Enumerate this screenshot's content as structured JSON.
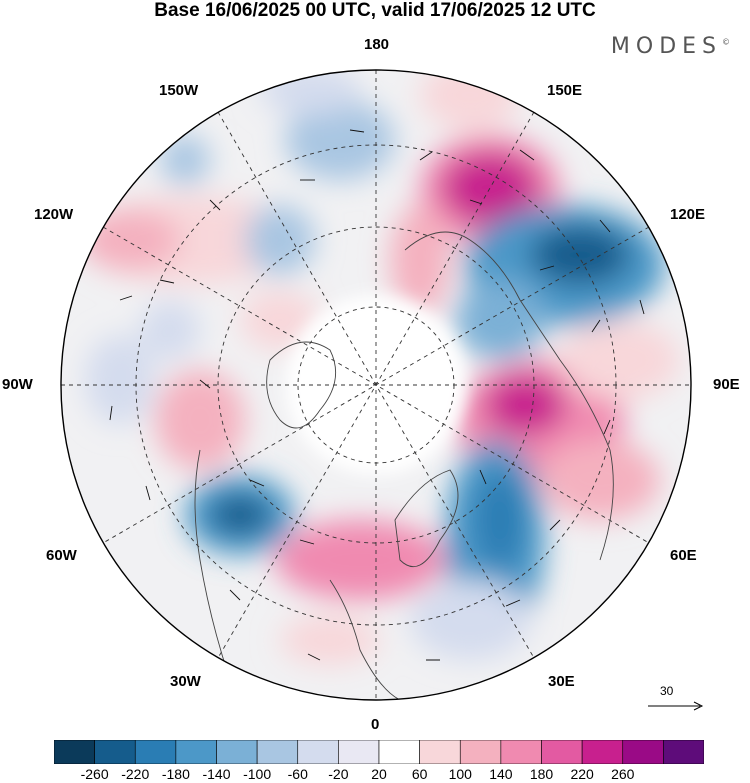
{
  "header": {
    "title": "Base 16/06/2025 00 UTC, valid 17/06/2025 12 UTC",
    "brand": "MODES",
    "brand_mark": "©"
  },
  "map": {
    "projection": "north-polar-stereographic",
    "longitude_labels": [
      {
        "id": "lon-180",
        "text": "180"
      },
      {
        "id": "lon-150e",
        "text": "150E"
      },
      {
        "id": "lon-120e",
        "text": "120E"
      },
      {
        "id": "lon-90e",
        "text": "90E"
      },
      {
        "id": "lon-60e",
        "text": "60E"
      },
      {
        "id": "lon-30e",
        "text": "30E"
      },
      {
        "id": "lon-0",
        "text": "0"
      },
      {
        "id": "lon-30w",
        "text": "30W"
      },
      {
        "id": "lon-60w",
        "text": "60W"
      },
      {
        "id": "lon-90w",
        "text": "90W"
      },
      {
        "id": "lon-120w",
        "text": "120W"
      },
      {
        "id": "lon-150w",
        "text": "150W"
      }
    ],
    "reference_vector": "30"
  },
  "colorbar": {
    "colors": [
      "#0b3a5a",
      "#155c8c",
      "#2a7db4",
      "#4c98c8",
      "#7bb0d6",
      "#a9c6e2",
      "#d4dcee",
      "#e9e8f3",
      "#ffffff",
      "#f8d7da",
      "#f4b1bf",
      "#f08ab0",
      "#e35aa2",
      "#c8208e",
      "#9a0a86",
      "#5e0c7a"
    ],
    "labels": [
      "-260",
      "-220",
      "-180",
      "-140",
      "-100",
      "-60",
      "-20",
      "20",
      "60",
      "100",
      "140",
      "180",
      "220",
      "260"
    ]
  }
}
